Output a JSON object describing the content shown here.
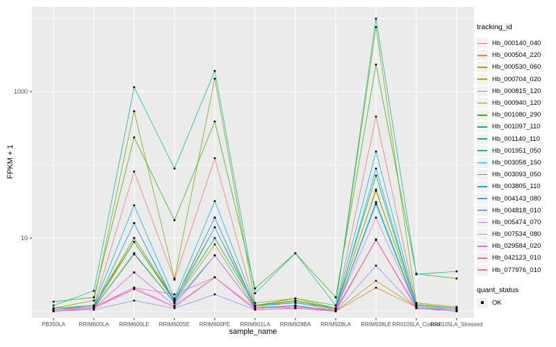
{
  "chart_data": {
    "type": "line",
    "title": "",
    "xlabel": "sample_name",
    "ylabel": "FPKM + 1",
    "y_scale": "log10",
    "grid": true,
    "legend_position": "right",
    "panel_bg": "#EBEBEB",
    "grid_color": "#FFFFFF",
    "point_color": "#000000",
    "tick_color": "#333333",
    "axis_text_color": "#4D4D4D",
    "ylim": [
      0.85,
      14000
    ],
    "y_ticks": [
      {
        "label": "10",
        "value": 10
      },
      {
        "label": "1000",
        "value": 1000
      }
    ],
    "y_minor_ticks": [
      1,
      100,
      10000
    ],
    "categories": [
      "PB350LA",
      "RRIM600LA",
      "RRIM600LE",
      "RRIM600SE",
      "RRIM600PE",
      "RRIM901LA",
      "RRIM928BA",
      "RRIM928LA",
      "RRIM928LE",
      "RRII105LA_Control",
      "RRII105LA_Stressed"
    ],
    "legend": {
      "title": "tracking_id"
    },
    "quant_legend": {
      "title": "quant_status",
      "items": [
        {
          "label": "OK",
          "shape": "square",
          "color": "#000000"
        }
      ]
    },
    "series": [
      {
        "name": "Hb_000140_040",
        "color": "#F8766D",
        "values": [
          1.1,
          1.2,
          81,
          2.7,
          123,
          1.2,
          1.3,
          1.1,
          456,
          1.25,
          1.1
        ]
      },
      {
        "name": "Hb_000504_220",
        "color": "#EA8331",
        "values": [
          1.0,
          1.1,
          6.0,
          1.3,
          5.8,
          1.1,
          1.2,
          1.0,
          2.1,
          1.15,
          1.05
        ]
      },
      {
        "name": "Hb_000530_060",
        "color": "#D89000",
        "values": [
          1.05,
          1.15,
          10,
          1.4,
          19,
          1.15,
          1.4,
          1.05,
          46,
          1.2,
          1.1
        ]
      },
      {
        "name": "Hb_000704_020",
        "color": "#C09B00",
        "values": [
          1.0,
          1.1,
          8.9,
          1.35,
          8.2,
          1.1,
          1.35,
          1.0,
          2.6,
          1.15,
          1.05
        ]
      },
      {
        "name": "Hb_000815_120",
        "color": "#A3A500",
        "values": [
          1.05,
          1.2,
          10,
          1.45,
          14,
          1.2,
          1.5,
          1.1,
          44,
          1.25,
          1.1
        ]
      },
      {
        "name": "Hb_000940_120",
        "color": "#7CAE00",
        "values": [
          1.1,
          1.4,
          540,
          2.8,
          1500,
          1.3,
          1.5,
          1.2,
          7600,
          1.3,
          1.15
        ]
      },
      {
        "name": "Hb_001080_290",
        "color": "#39B600",
        "values": [
          1.35,
          1.55,
          237,
          17.5,
          391,
          2.05,
          6.2,
          1.55,
          2340,
          3.25,
          2.8
        ]
      },
      {
        "name": "Hb_001097_110",
        "color": "#00BB4E",
        "values": [
          1.1,
          1.2,
          8.9,
          1.4,
          10,
          1.2,
          1.4,
          1.1,
          71,
          1.2,
          1.1
        ]
      },
      {
        "name": "Hb_001140_110",
        "color": "#00BF7D",
        "values": [
          1.0,
          1.1,
          6.2,
          1.3,
          5.8,
          1.1,
          1.2,
          1.0,
          31,
          1.15,
          1.05
        ]
      },
      {
        "name": "Hb_001951_050",
        "color": "#00C1A3",
        "values": [
          1.2,
          1.9,
          1150,
          89,
          1920,
          1.76,
          6.2,
          1.2,
          9900,
          3.2,
          3.5
        ]
      },
      {
        "name": "Hb_003058_150",
        "color": "#00BFC4",
        "values": [
          1.0,
          1.1,
          6.2,
          1.3,
          5.8,
          1.1,
          1.2,
          1.0,
          29,
          1.1,
          1.05
        ]
      },
      {
        "name": "Hb_003093_050",
        "color": "#00BAE0",
        "values": [
          1.05,
          1.2,
          28,
          1.5,
          32,
          1.2,
          1.3,
          1.1,
          152,
          1.2,
          1.1
        ]
      },
      {
        "name": "Hb_003805_110",
        "color": "#00B0F6",
        "values": [
          1.0,
          1.1,
          16,
          1.35,
          19,
          1.1,
          1.2,
          1.0,
          89,
          1.15,
          1.05
        ]
      },
      {
        "name": "Hb_004143_080",
        "color": "#35A2FF",
        "values": [
          1.0,
          1.1,
          16,
          1.3,
          14,
          1.1,
          1.2,
          1.0,
          31,
          1.1,
          1.0
        ]
      },
      {
        "name": "Hb_004818_010",
        "color": "#9590FF",
        "values": [
          1.0,
          1.05,
          1.4,
          1.1,
          1.7,
          1.05,
          1.1,
          1.0,
          4.2,
          1.1,
          1.0
        ]
      },
      {
        "name": "Hb_005474_070",
        "color": "#C77CFF",
        "values": [
          1.05,
          1.1,
          3.4,
          1.2,
          2.9,
          1.1,
          1.15,
          1.05,
          19,
          1.15,
          1.05
        ]
      },
      {
        "name": "Hb_007534_080",
        "color": "#E76BF3",
        "values": [
          1.0,
          1.1,
          3.4,
          1.2,
          5.8,
          1.1,
          1.15,
          1.0,
          9.6,
          1.1,
          1.0
        ]
      },
      {
        "name": "Hb_029584_020",
        "color": "#FA62DB",
        "values": [
          1.0,
          1.1,
          2.1,
          1.15,
          2.9,
          1.05,
          1.1,
          1.0,
          9.5,
          1.1,
          1.0
        ]
      },
      {
        "name": "Hb_042123_010",
        "color": "#FF62BC",
        "values": [
          1.05,
          1.15,
          2.1,
          1.7,
          2.9,
          1.1,
          1.15,
          1.05,
          9.4,
          1.15,
          1.05
        ]
      },
      {
        "name": "Hb_077976_010",
        "color": "#FF6A98",
        "values": [
          1.0,
          1.1,
          2.0,
          1.15,
          2.9,
          1.05,
          1.1,
          1.0,
          9.4,
          1.1,
          1.0
        ]
      }
    ]
  }
}
